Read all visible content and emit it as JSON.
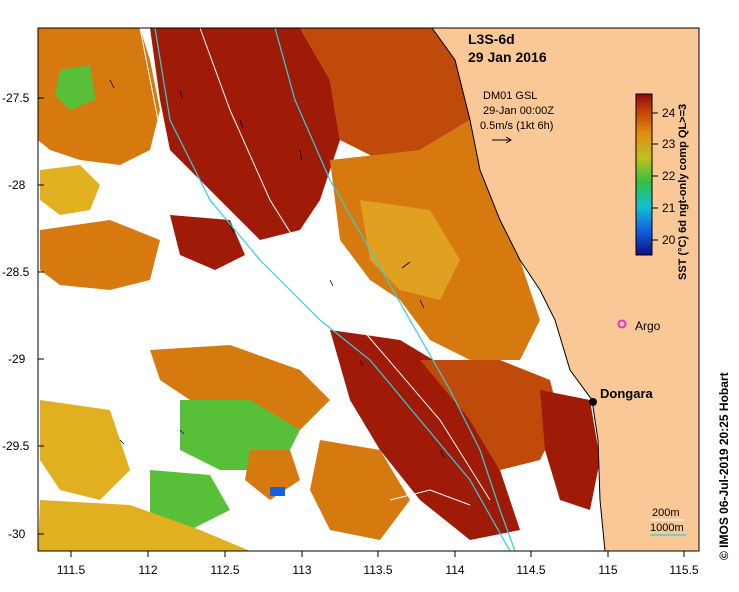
{
  "map": {
    "product_title": "L3S-6d",
    "date": "29 Jan 2016",
    "current_source": "DM01 GSL",
    "current_time": "29-Jan 00:00Z",
    "current_scale": "0.5m/s (1kt 6h)",
    "argo_label": "Argo",
    "town_label": "Dongara",
    "isobath_200": "200m",
    "isobath_1000": "1000m",
    "credit": "© IMOS 06-Jul-2019 20:25 Hobart",
    "longitude_ticks": [
      "111.5",
      "112",
      "112.5",
      "113",
      "113.5",
      "114",
      "114.5",
      "115",
      "115.5"
    ],
    "latitude_ticks": [
      "-27.5",
      "-28",
      "-28.5",
      "-29",
      "-29.5",
      "-30"
    ],
    "colorbar": {
      "label": "SST (°C) 6d ngt-only comp QL>=3",
      "ticks": [
        "24",
        "23",
        "22",
        "21",
        "20"
      ],
      "range": [
        19.5,
        24.5
      ]
    },
    "colors": {
      "land": "#f9c896",
      "sst_warm": "#a01a08",
      "sst_mid": "#d67a10",
      "sst_cool": "#e0b020",
      "sst_green": "#58c038",
      "isobath_1000": "#30d0e0",
      "argo": "#e030e0"
    }
  }
}
